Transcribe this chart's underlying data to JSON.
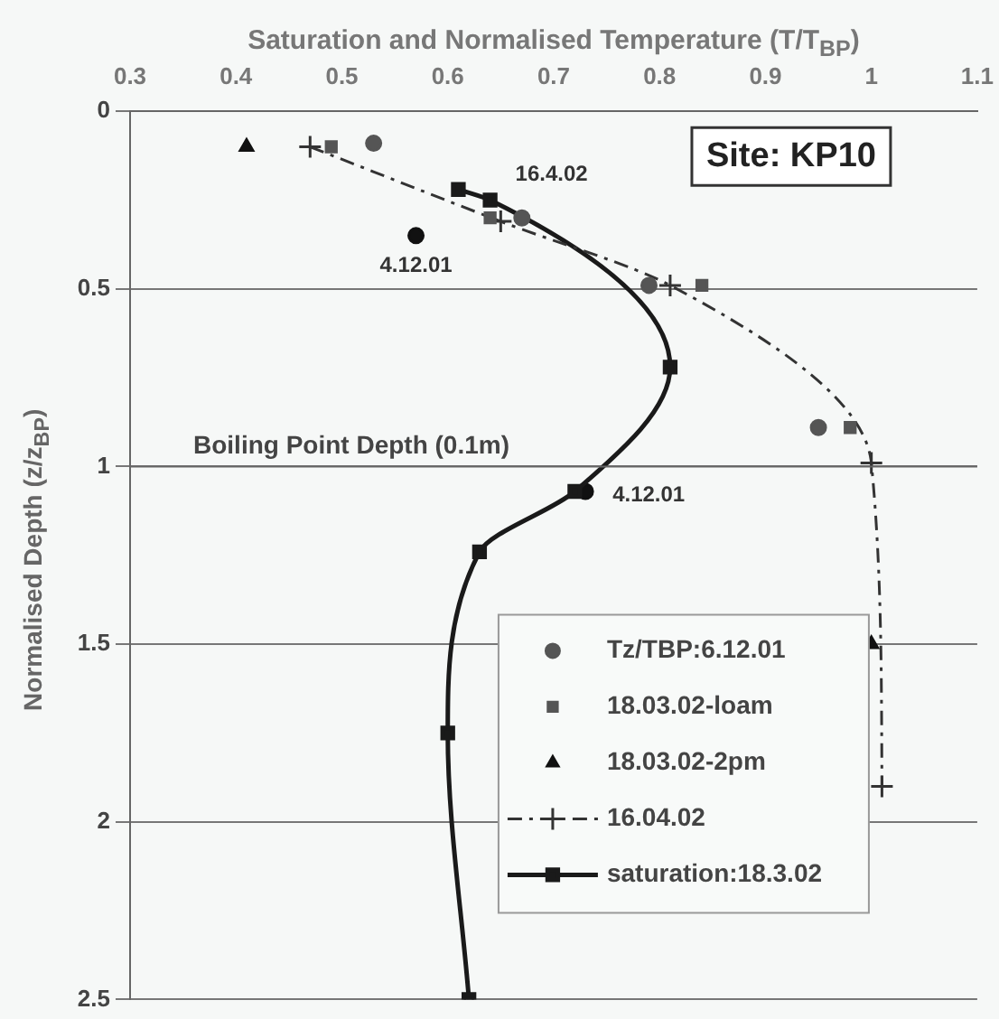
{
  "chart_data": {
    "type": "scatter",
    "xlabel": "Saturation and Normalised Temperature (T/T$_{BP}$)",
    "ylabel": "Normalised Depth (z/z$_{BP}$)",
    "xlim": [
      0.3,
      1.1
    ],
    "xticks": [
      0.3,
      0.4,
      0.5,
      0.6,
      0.7,
      0.8,
      0.9,
      1,
      1.1
    ],
    "ylim": [
      2.5,
      0
    ],
    "yticks": [
      0,
      0.5,
      1,
      1.5,
      2,
      2.5
    ],
    "grid": "y",
    "legend": "bottom right",
    "series": [
      {
        "name": "Tz/TBP:6.12.01",
        "color": "#555555",
        "marker": "circle",
        "x": [
          0.53,
          0.67,
          0.79,
          0.95
        ],
        "values": [
          0.09,
          0.3,
          0.49,
          0.89
        ]
      },
      {
        "name": "18.03.02-loam",
        "color": "#555555",
        "marker": "square",
        "x": [
          0.49,
          0.64,
          0.84,
          0.98
        ],
        "values": [
          0.1,
          0.3,
          0.49,
          0.89
        ]
      },
      {
        "name": "18.03.02-2pm",
        "color": "#111111",
        "marker": "triangle",
        "x": [
          0.41,
          1.0
        ],
        "values": [
          0.1,
          1.5
        ]
      },
      {
        "name": "16.04.02",
        "type": "line",
        "color": "#333333",
        "marker": "cross",
        "line_style": "dashed",
        "x": [
          0.47,
          0.65,
          0.81,
          1.0,
          1.01
        ],
        "values": [
          0.1,
          0.31,
          0.49,
          0.99,
          1.9
        ]
      },
      {
        "name": "saturation:18.3.02",
        "type": "line",
        "color": "#1a1a1a",
        "marker": "square",
        "line_style": "solid",
        "x": [
          0.61,
          0.64,
          0.81,
          0.72,
          0.63,
          0.6,
          0.62
        ],
        "values": [
          0.22,
          0.25,
          0.72,
          1.07,
          1.24,
          1.75,
          2.5
        ]
      },
      {
        "color": "#111111",
        "marker": "circle",
        "x": [
          0.57,
          0.73
        ],
        "values": [
          0.35,
          1.07
        ]
      },
      {
        "color": "#111111",
        "marker": "square",
        "x": [
          0.64
        ],
        "values": [
          0.25
        ]
      }
    ],
    "ref_lines": [
      {
        "axis": "y",
        "value": 1,
        "label": "Boiling Point Depth (0.1m)",
        "color": "#666666"
      }
    ],
    "annotations": [
      "Site: KP10",
      {
        "text": "16.4.02",
        "x": 0.64,
        "y": 0.25
      },
      {
        "text": "4.12.01",
        "x": 0.57,
        "y": 0.35
      },
      {
        "text": "4.12.01",
        "x": 0.73,
        "y": 1.07
      }
    ]
  }
}
